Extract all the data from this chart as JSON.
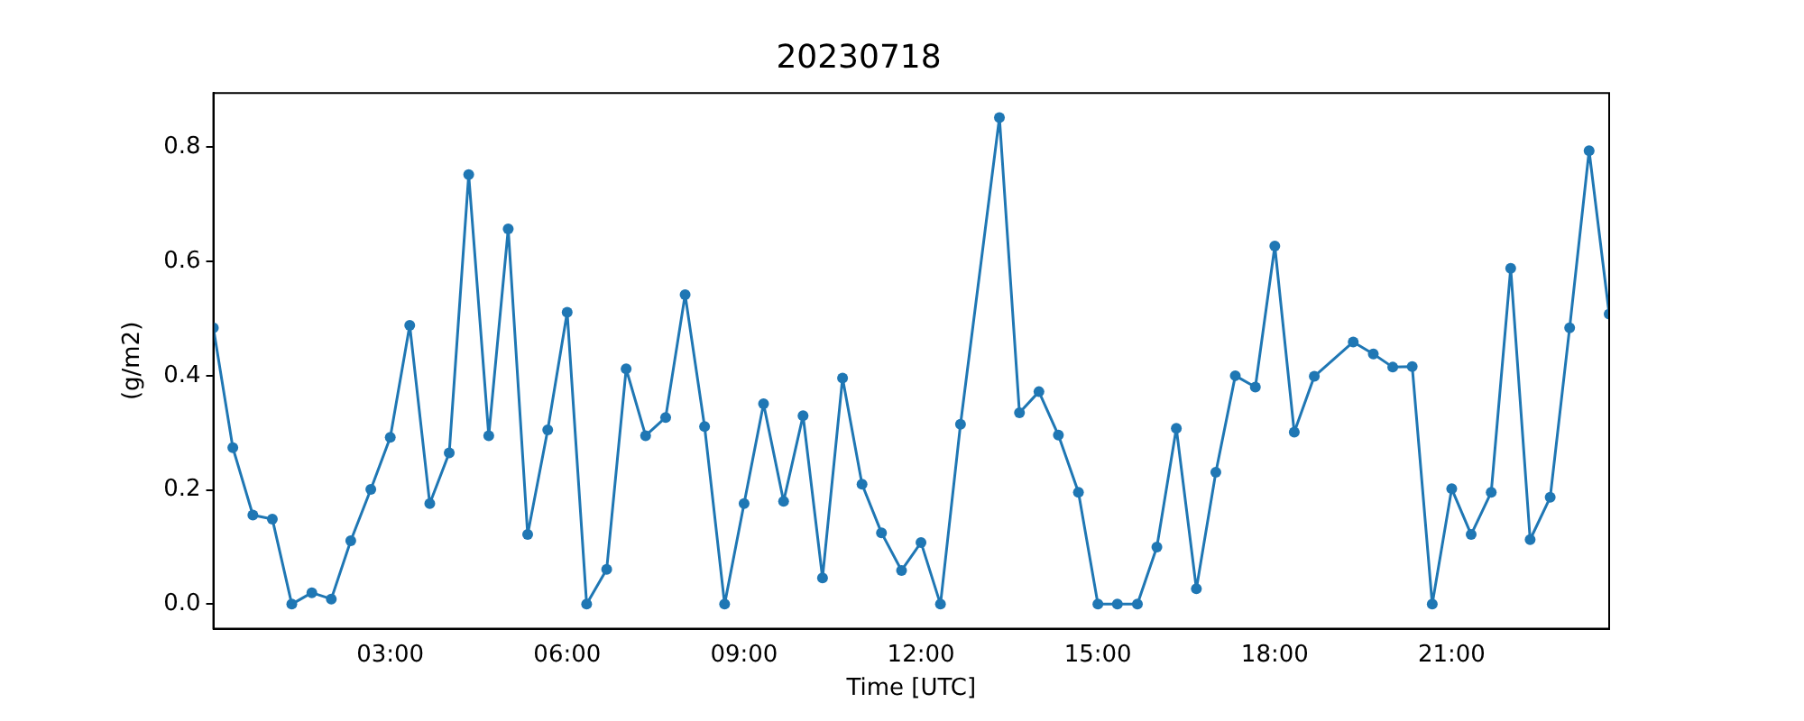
{
  "chart_data": {
    "type": "line",
    "title": "20230718",
    "xlabel": "Time [UTC]",
    "ylabel": "(g/m2)",
    "x": [
      0,
      0.33,
      0.67,
      1,
      1.33,
      1.67,
      2,
      2.33,
      2.67,
      3,
      3.33,
      3.67,
      4,
      4.33,
      4.67,
      5,
      5.33,
      5.67,
      6,
      6.33,
      6.67,
      7,
      7.33,
      7.67,
      8,
      8.33,
      8.67,
      9,
      9.33,
      9.67,
      10,
      10.33,
      10.67,
      11,
      11.33,
      11.67,
      12,
      12.33,
      12.67,
      13.33,
      13.67,
      14,
      14.33,
      14.67,
      15,
      15.33,
      15.67,
      16,
      16.33,
      16.67,
      17,
      17.33,
      17.67,
      18,
      18.33,
      18.67,
      19.33,
      19.67,
      20,
      20.33,
      20.67,
      21,
      21.33,
      21.67,
      22,
      22.33,
      22.67,
      23,
      23.33,
      23.67
    ],
    "series": [
      {
        "color": "#1f77b4",
        "values": [
          0.484,
          0.274,
          0.156,
          0.149,
          0,
          0.02,
          0.009,
          0.111,
          0.201,
          0.292,
          0.488,
          0.176,
          0.265,
          0.752,
          0.295,
          0.657,
          0.122,
          0.305,
          0.511,
          0,
          0.061,
          0.412,
          0.295,
          0.327,
          0.542,
          0.311,
          0,
          0.176,
          0.351,
          0.18,
          0.33,
          0.046,
          0.396,
          0.21,
          0.125,
          0.059,
          0.108,
          0,
          0.315,
          0.852,
          0.335,
          0.372,
          0.296,
          0.196,
          0,
          0,
          0,
          0.1,
          0.308,
          0.027,
          0.231,
          0.4,
          0.38,
          0.627,
          0.301,
          0.399,
          0.459,
          0.438,
          0.415,
          0.416,
          0,
          0.202,
          0.122,
          0.196,
          0.588,
          0.113,
          0.187,
          0.484,
          0.794,
          0.508
        ]
      }
    ],
    "xlim": [
      0,
      23.67
    ],
    "xticks": [
      {
        "value": 3,
        "label": "03:00"
      },
      {
        "value": 6,
        "label": "06:00"
      },
      {
        "value": 9,
        "label": "09:00"
      },
      {
        "value": 12,
        "label": "12:00"
      },
      {
        "value": 15,
        "label": "15:00"
      },
      {
        "value": 18,
        "label": "18:00"
      },
      {
        "value": 21,
        "label": "21:00"
      }
    ],
    "ylim": [
      -0.043,
      0.895
    ],
    "yticks": [
      {
        "value": 0,
        "label": "0.0"
      },
      {
        "value": 0.2,
        "label": "0.2"
      },
      {
        "value": 0.4,
        "label": "0.4"
      },
      {
        "value": 0.6,
        "label": "0.6"
      },
      {
        "value": 0.8,
        "label": "0.8"
      }
    ],
    "grid": false,
    "legend": false,
    "marker": "circle",
    "line_style": "solid"
  }
}
